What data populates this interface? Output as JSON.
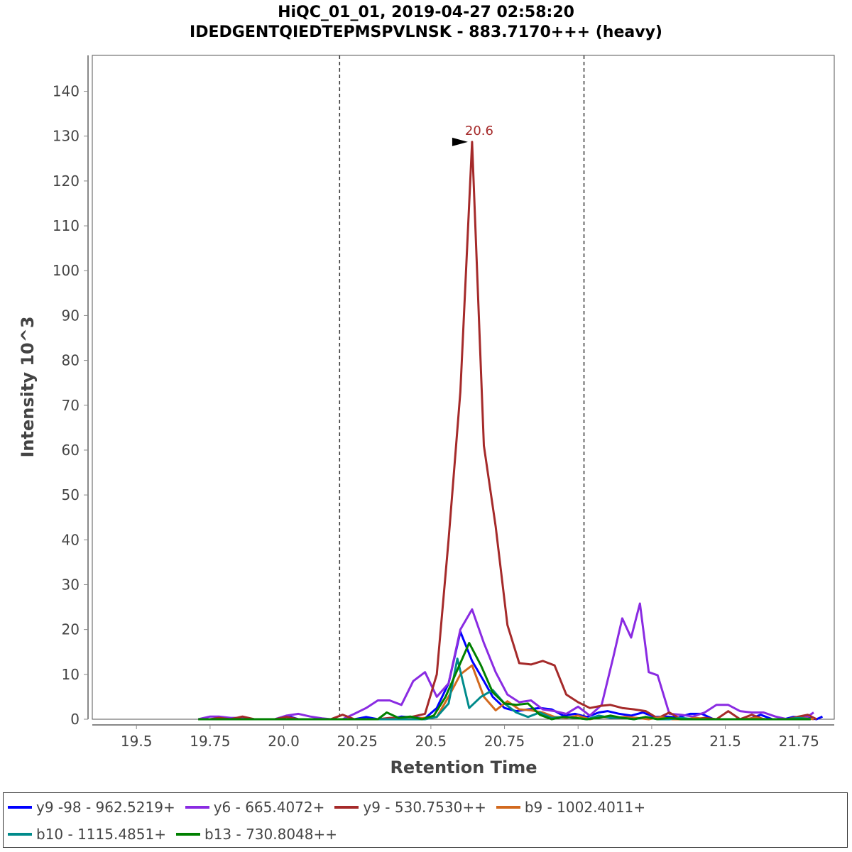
{
  "chart_data": {
    "type": "line",
    "title": "HiQC_01_01, 2019-04-27 02:58:20",
    "subtitle": "IDEDGENTQIEDTEPMSPVLNSK - 883.7170+++ (heavy)",
    "xlabel": "Retention Time",
    "ylabel": "Intensity 10^3",
    "xlim": [
      19.35,
      21.87
    ],
    "ylim": [
      0,
      148
    ],
    "x_ticks": [
      19.5,
      19.75,
      20.0,
      20.25,
      20.5,
      20.75,
      21.0,
      21.25,
      21.5,
      21.75
    ],
    "x_tick_labels": [
      "19.5",
      "19.75",
      "20.0",
      "20.25",
      "20.5",
      "20.75",
      "21.0",
      "21.25",
      "21.5",
      "21.75"
    ],
    "y_ticks": [
      0,
      10,
      20,
      30,
      40,
      50,
      60,
      70,
      80,
      90,
      100,
      110,
      120,
      130,
      140
    ],
    "y_tick_labels": [
      "0",
      "10",
      "20",
      "30",
      "40",
      "50",
      "60",
      "70",
      "80",
      "90",
      "100",
      "110",
      "120",
      "130",
      "140"
    ],
    "integration_boundaries": [
      20.19,
      21.02
    ],
    "peak_annotation": {
      "label": "20.6",
      "x": 20.64,
      "y": 128.7,
      "color": "#a52a2a"
    },
    "series": [
      {
        "name": "y9 -98 - 962.5219+",
        "color": "#0000ff",
        "x": [
          19.71,
          19.74,
          19.78,
          19.82,
          19.86,
          19.89,
          19.93,
          19.97,
          20.01,
          20.05,
          20.09,
          20.12,
          20.16,
          20.2,
          20.24,
          20.28,
          20.32,
          20.36,
          20.4,
          20.44,
          20.48,
          20.52,
          20.56,
          20.6,
          20.64,
          20.68,
          20.71,
          20.75,
          20.79,
          20.83,
          20.87,
          20.91,
          20.95,
          20.99,
          21.03,
          21.07,
          21.1,
          21.14,
          21.18,
          21.22,
          21.26,
          21.3,
          21.34,
          21.38,
          21.42,
          21.46,
          21.5,
          21.54,
          21.58,
          21.62,
          21.66,
          21.7,
          21.73,
          21.77,
          21.81,
          21.83
        ],
        "y": [
          0,
          0,
          0,
          0,
          0,
          0,
          0,
          0,
          0.8,
          0,
          0,
          0,
          0,
          0,
          0,
          0.5,
          0,
          0,
          0.6,
          0.4,
          0.2,
          2.5,
          8,
          19.5,
          13,
          8.5,
          5,
          2.5,
          1.8,
          2.2,
          2.5,
          2.2,
          0.8,
          1.2,
          0.5,
          1.5,
          1.8,
          1.2,
          0.8,
          1.5,
          0.5,
          0.6,
          0.4,
          1.2,
          1.2,
          0,
          0,
          0,
          0,
          1,
          0,
          0,
          0.5,
          0.4,
          0,
          0.6
        ]
      },
      {
        "name": "y6 - 665.4072+",
        "color": "#8a2be2",
        "x": [
          19.71,
          19.75,
          19.78,
          19.82,
          19.86,
          19.9,
          19.93,
          19.97,
          20.01,
          20.05,
          20.09,
          20.13,
          20.16,
          20.2,
          20.24,
          20.28,
          20.32,
          20.36,
          20.4,
          20.44,
          20.48,
          20.52,
          20.56,
          20.6,
          20.64,
          20.68,
          20.72,
          20.76,
          20.8,
          20.84,
          20.88,
          20.92,
          20.96,
          21.0,
          21.04,
          21.08,
          21.12,
          21.15,
          21.18,
          21.21,
          21.24,
          21.27,
          21.31,
          21.35,
          21.39,
          21.43,
          21.47,
          21.51,
          21.55,
          21.59,
          21.63,
          21.67,
          21.71,
          21.75,
          21.78,
          21.8
        ],
        "y": [
          0,
          0.6,
          0.6,
          0.3,
          0.3,
          0,
          0,
          0,
          0.8,
          1.2,
          0.6,
          0.2,
          0,
          0,
          1.2,
          2.5,
          4.2,
          4.2,
          3.2,
          8.5,
          10.5,
          5,
          8,
          20,
          24.5,
          17,
          10.5,
          5.5,
          3.8,
          4.2,
          2.2,
          1.8,
          1.2,
          2.8,
          0.8,
          3.2,
          14,
          22.5,
          18.2,
          25.8,
          10.5,
          9.8,
          1.2,
          1,
          0.6,
          1.5,
          3.2,
          3.2,
          1.8,
          1.5,
          1.5,
          0.6,
          0,
          0,
          0.6,
          1.5
        ]
      },
      {
        "name": "y9 - 530.7530++",
        "color": "#a52a2a",
        "x": [
          19.71,
          19.75,
          19.78,
          19.82,
          19.86,
          19.9,
          19.93,
          19.97,
          20.01,
          20.05,
          20.09,
          20.13,
          20.16,
          20.2,
          20.24,
          20.28,
          20.32,
          20.36,
          20.4,
          20.44,
          20.48,
          20.52,
          20.56,
          20.6,
          20.64,
          20.68,
          20.72,
          20.76,
          20.8,
          20.84,
          20.88,
          20.92,
          20.96,
          21.0,
          21.04,
          21.08,
          21.11,
          21.15,
          21.19,
          21.23,
          21.27,
          21.31,
          21.35,
          21.39,
          21.43,
          21.47,
          21.51,
          21.55,
          21.59,
          21.63,
          21.67,
          21.71,
          21.75,
          21.78,
          21.81
        ],
        "y": [
          0,
          0,
          0.3,
          0,
          0.6,
          0,
          0,
          0,
          0.5,
          0,
          0,
          0,
          0,
          1,
          0,
          0,
          0,
          0.3,
          0.3,
          0.6,
          1.2,
          10,
          40,
          73,
          128.7,
          61,
          43,
          21,
          12.5,
          12.2,
          13,
          12,
          5.5,
          3.8,
          2.5,
          3,
          3.2,
          2.5,
          2.2,
          1.8,
          0.2,
          1.5,
          0,
          0,
          0.3,
          0,
          1.8,
          0,
          1,
          0,
          0,
          0,
          0.6,
          1,
          0
        ]
      },
      {
        "name": "b9 - 1002.4011+",
        "color": "#d2691e",
        "x": [
          19.71,
          19.78,
          19.86,
          19.93,
          20.01,
          20.09,
          20.16,
          20.24,
          20.32,
          20.4,
          20.48,
          20.52,
          20.56,
          20.6,
          20.64,
          20.68,
          20.72,
          20.76,
          20.8,
          20.84,
          20.88,
          20.92,
          20.96,
          21.0,
          21.04,
          21.08,
          21.12,
          21.16,
          21.2,
          21.24,
          21.28,
          21.32,
          21.36,
          21.4,
          21.44,
          21.48,
          21.52,
          21.56,
          21.6,
          21.64,
          21.68,
          21.72,
          21.76,
          21.8
        ],
        "y": [
          0,
          0,
          0,
          0,
          0,
          0,
          0,
          0,
          0,
          0,
          0.3,
          0.5,
          5,
          10,
          12,
          5,
          2,
          4,
          2.2,
          2,
          1.5,
          0.5,
          0.3,
          0.8,
          0,
          0.5,
          0.3,
          0.5,
          0.3,
          0,
          0.5,
          0,
          0,
          0.3,
          0,
          0,
          0,
          0,
          0.3,
          0,
          0,
          0,
          0.3,
          0
        ]
      },
      {
        "name": "b10 - 1115.4851+",
        "color": "#008b8b",
        "x": [
          19.71,
          19.78,
          19.86,
          19.93,
          20.01,
          20.09,
          20.16,
          20.24,
          20.32,
          20.4,
          20.48,
          20.52,
          20.56,
          20.59,
          20.63,
          20.67,
          20.71,
          20.75,
          20.79,
          20.83,
          20.87,
          20.91,
          20.95,
          20.99,
          21.03,
          21.07,
          21.11,
          21.15,
          21.19,
          21.23,
          21.27,
          21.31,
          21.35,
          21.39,
          21.43,
          21.47,
          21.51,
          21.55,
          21.59,
          21.63,
          21.67,
          21.71,
          21.75,
          21.79
        ],
        "y": [
          0,
          0,
          0,
          0,
          0,
          0,
          0,
          0,
          0,
          0,
          0,
          0.5,
          3.5,
          13.5,
          2.5,
          5,
          6.5,
          3.5,
          1.5,
          0.5,
          1.5,
          0.3,
          0.5,
          0.3,
          0,
          0.8,
          0.3,
          0.3,
          0,
          0.5,
          0,
          0,
          0.3,
          0,
          0,
          0,
          0,
          0,
          0,
          0,
          0,
          0,
          0.3,
          0
        ]
      },
      {
        "name": "b13 - 730.8048++",
        "color": "#008000",
        "x": [
          19.71,
          19.78,
          19.86,
          19.93,
          20.01,
          20.09,
          20.16,
          20.24,
          20.32,
          20.35,
          20.39,
          20.43,
          20.47,
          20.51,
          20.55,
          20.59,
          20.63,
          20.67,
          20.71,
          20.75,
          20.79,
          20.83,
          20.87,
          20.91,
          20.95,
          20.99,
          21.03,
          21.07,
          21.11,
          21.15,
          21.19,
          21.23,
          21.27,
          21.31,
          21.35,
          21.39,
          21.43,
          21.47,
          21.51,
          21.55,
          21.59,
          21.63,
          21.67,
          21.71,
          21.75,
          21.79
        ],
        "y": [
          0,
          0,
          0,
          0,
          0,
          0,
          0,
          0,
          0,
          1.5,
          0.3,
          0.6,
          0,
          0.8,
          5,
          11,
          17,
          12,
          6,
          3.5,
          3.2,
          3.5,
          1,
          0,
          0.5,
          0.3,
          0,
          0.3,
          0.8,
          0.3,
          0,
          0.5,
          0,
          0.3,
          0,
          0,
          0,
          0,
          0,
          0,
          0,
          0,
          0,
          0,
          0,
          0
        ]
      }
    ]
  }
}
